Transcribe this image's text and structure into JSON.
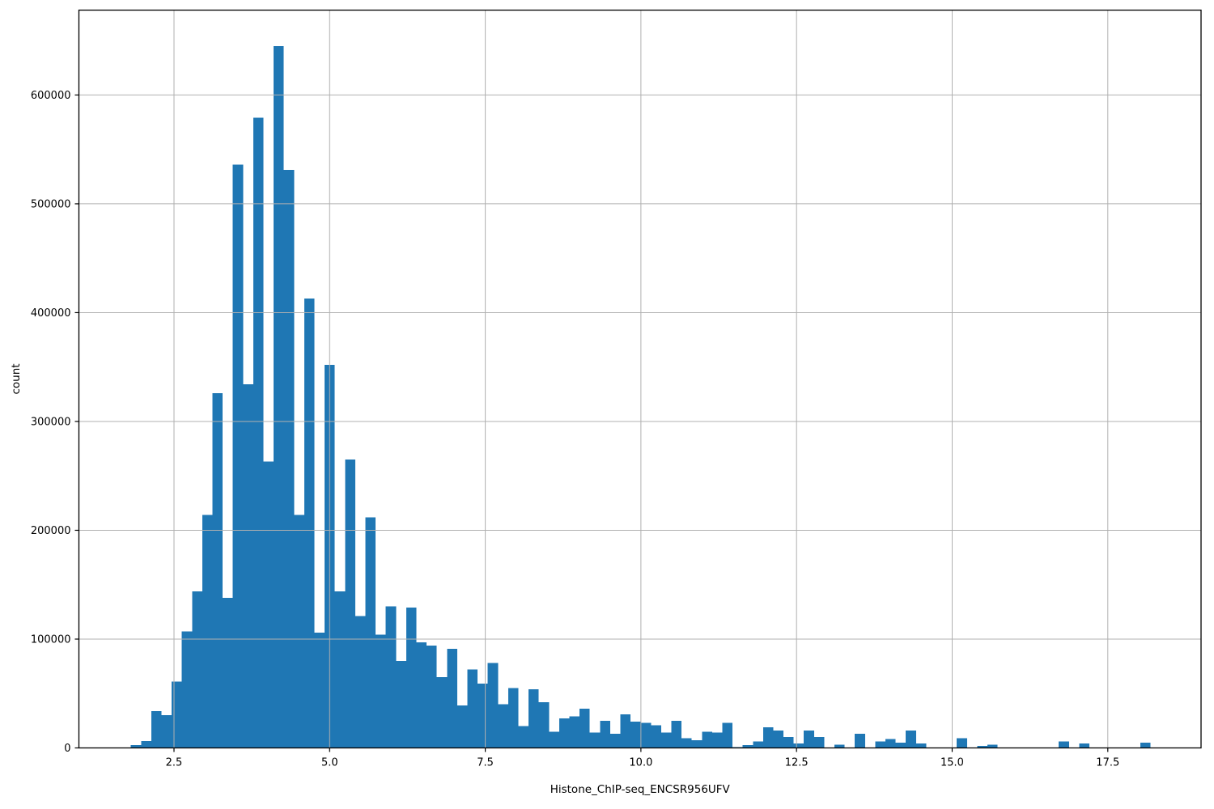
{
  "chart_data": {
    "type": "bar",
    "subtype": "histogram",
    "title": "",
    "xlabel": "Histone_ChIP-seq_ENCSR956UFV",
    "ylabel": "count",
    "bar_color": "#1f77b4",
    "grid_color": "#b0b0b0",
    "axis_color": "#000000",
    "text_color": "#000000",
    "background_color": "#ffffff",
    "grid": true,
    "legend_position": "none",
    "bin_start": 1.807,
    "bin_width": 0.1638,
    "xlim": [
      0.9725,
      18.998
    ],
    "ylim": [
      0,
      678000
    ],
    "xticks": [
      2.5,
      5.0,
      7.5,
      10.0,
      12.5,
      15.0,
      17.5
    ],
    "xtick_labels": [
      "2.5",
      "5.0",
      "7.5",
      "10.0",
      "12.5",
      "15.0",
      "17.5"
    ],
    "yticks": [
      0,
      100000,
      200000,
      300000,
      400000,
      500000,
      600000
    ],
    "ytick_labels": [
      "0",
      "100000",
      "200000",
      "300000",
      "400000",
      "500000",
      "600000"
    ],
    "counts": [
      2500,
      6500,
      34000,
      30000,
      61000,
      107000,
      144000,
      214000,
      326000,
      138000,
      536000,
      334000,
      579000,
      263000,
      645000,
      531000,
      214000,
      413000,
      106000,
      352000,
      144000,
      265000,
      121000,
      212000,
      104000,
      130000,
      80000,
      129000,
      97000,
      94000,
      65000,
      91000,
      39000,
      72000,
      59000,
      78000,
      40000,
      55000,
      20000,
      54000,
      42000,
      15000,
      27000,
      29000,
      36000,
      14000,
      25000,
      13000,
      31000,
      24000,
      23000,
      21000,
      14000,
      25000,
      9000,
      7000,
      15000,
      14000,
      23000,
      800,
      2500,
      6000,
      19000,
      16000,
      10000,
      4000,
      16000,
      10000,
      0,
      3000,
      0,
      13000,
      0,
      6000,
      8000,
      5000,
      16000,
      4000,
      0,
      0,
      0,
      9000,
      0,
      2000,
      3000,
      0,
      0,
      0,
      0,
      0,
      0,
      6000,
      0,
      4000,
      0,
      0,
      0,
      0,
      0,
      5000
    ]
  }
}
